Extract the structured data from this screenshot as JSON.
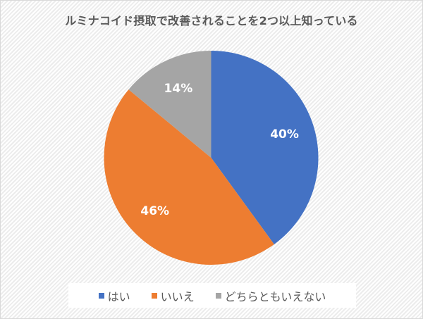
{
  "chart_data": {
    "type": "pie",
    "title": "ルミナコイド摂取で改善されることを2つ以上知っている",
    "categories": [
      "はい",
      "いいえ",
      "どちらともいえない"
    ],
    "values": [
      40,
      46,
      14
    ],
    "labels": [
      "40%",
      "46%",
      "14%"
    ],
    "colors": [
      "#4472C4",
      "#ED7D31",
      "#A5A5A5"
    ],
    "legend_position": "bottom",
    "start_angle": "12 o'clock, clockwise"
  },
  "legend": {
    "items": [
      {
        "label": "はい",
        "color": "#4472C4"
      },
      {
        "label": "いいえ",
        "color": "#ED7D31"
      },
      {
        "label": "どちらともいえない",
        "color": "#A5A5A5"
      }
    ]
  }
}
